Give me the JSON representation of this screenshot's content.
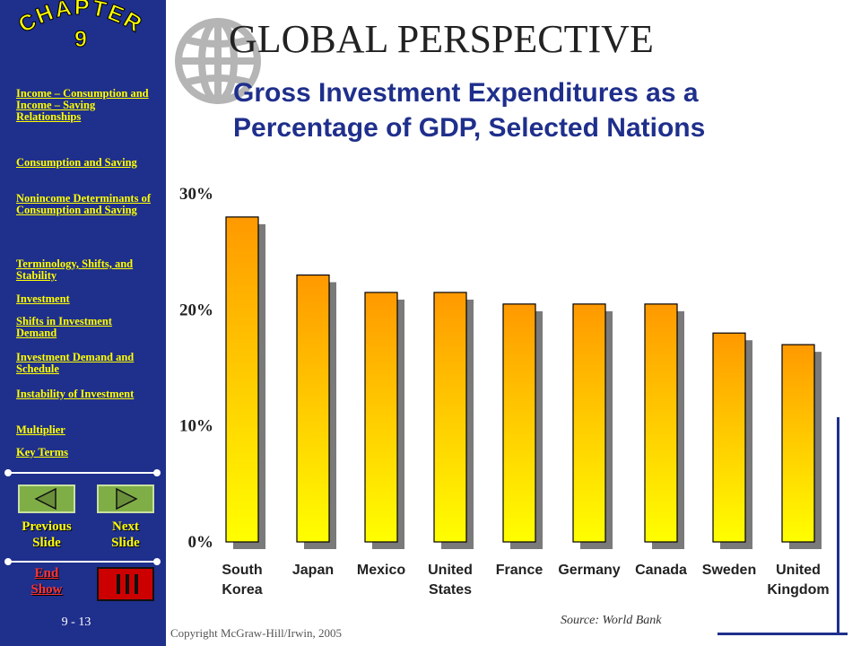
{
  "sidebar": {
    "chapter_label": "CHAPTER",
    "chapter_number": "9",
    "links": [
      "Income – Consumption and Income – Saving Relationships",
      "Consumption and Saving",
      "Nonincome Determinants of Consumption and Saving",
      "Terminology, Shifts, and Stability",
      "Investment",
      "Shifts in Investment Demand",
      "Investment Demand and Schedule",
      "Instability of Investment",
      "Multiplier",
      "Key Terms"
    ],
    "previous_label": "Previous\nSlide",
    "next_label": "Next\nSlide",
    "end_label": "End\nShow",
    "page_number": "9 - 13"
  },
  "header": {
    "title": "GLOBAL  PERSPECTIVE",
    "subtitle_line1": "Gross Investment Expenditures as a",
    "subtitle_line2": "Percentage of GDP, Selected Nations"
  },
  "chart_data": {
    "type": "bar",
    "title": "Gross Investment Expenditures as a Percentage of GDP, Selected Nations",
    "categories": [
      "South\nKorea",
      "Japan",
      "Mexico",
      "United\nStates",
      "France",
      "Germany",
      "Canada",
      "Sweden",
      "United\nKingdom"
    ],
    "values": [
      28,
      23,
      21.5,
      21.5,
      20.5,
      20.5,
      20.5,
      18,
      17
    ],
    "ylim": [
      0,
      30
    ],
    "yticks": [
      "0%",
      "10%",
      "20%",
      "30%"
    ],
    "ytick_values": [
      0,
      10,
      20,
      30
    ],
    "grid": false,
    "colors": {
      "bar_top": "#ff9900",
      "bar_bottom": "#ffff00",
      "shadow": "#7a7a7a"
    }
  },
  "footer": {
    "source": "Source: World Bank",
    "copyright": "Copyright McGraw-Hill/Irwin, 2005"
  }
}
